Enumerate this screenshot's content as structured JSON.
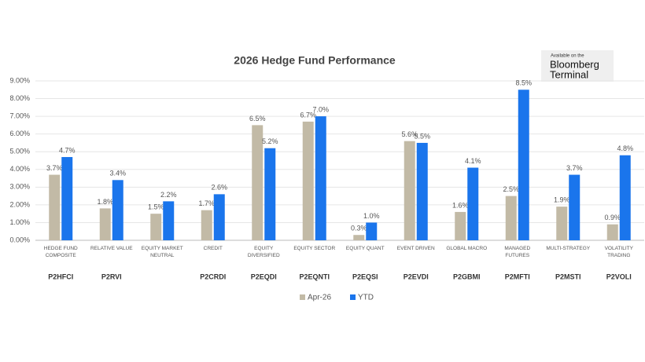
{
  "chart_data": {
    "type": "bar",
    "title": "2026 Hedge Fund Performance",
    "categories": [
      "HEDGE FUND\nCOMPOSITE",
      "RELATIVE VALUE",
      "EQUITY MARKET\nNEUTRAL",
      "CREDIT",
      "EQUITY\nDIVERSIFIED",
      "EQUITY SECTOR",
      "EQUITY QUANT",
      "EVENT DRIVEN",
      "GLOBAL MACRO",
      "MANAGED\nFUTURES",
      "MULTI-STRATEGY",
      "VOLATILITY\nTRADING"
    ],
    "tickers": [
      "P2HFCI",
      "P2RVI",
      null,
      "P2CRDI",
      "P2EQDI",
      "P2EQNTI",
      "P2EQSI",
      "P2EVDI",
      "P2GBMI",
      "P2MFTI",
      "P2MSTI",
      "P2VOLI"
    ],
    "series": [
      {
        "name": "Apr-26",
        "color": "#c2baa6",
        "values": [
          3.7,
          1.8,
          1.5,
          1.7,
          6.5,
          6.7,
          0.3,
          5.6,
          1.6,
          2.5,
          1.9,
          0.9
        ],
        "value_labels": [
          "3.7%",
          "1.8%",
          "1.5%",
          "1.7%",
          "6.5%",
          "6.7%",
          "0.3%",
          "5.6%",
          "1.6%",
          "2.5%",
          "1.9%",
          "0.9%"
        ]
      },
      {
        "name": "YTD",
        "color": "#1a75ec",
        "values": [
          4.7,
          3.4,
          2.2,
          2.6,
          5.2,
          7.0,
          1.0,
          5.5,
          4.1,
          8.5,
          3.7,
          4.8
        ],
        "value_labels": [
          "4.7%",
          "3.4%",
          "2.2%",
          "2.6%",
          "5.2%",
          "7.0%",
          "1.0%",
          "5.5%",
          "4.1%",
          "8.5%",
          "3.7%",
          "4.8%"
        ]
      }
    ],
    "ylim": [
      0,
      9
    ],
    "yticks": [
      {
        "value": 0,
        "label": "0.00%"
      },
      {
        "value": 1,
        "label": "1.00%"
      },
      {
        "value": 2,
        "label": "2.00%"
      },
      {
        "value": 3,
        "label": "3.00%"
      },
      {
        "value": 4,
        "label": "4.00%"
      },
      {
        "value": 5,
        "label": "5.00%"
      },
      {
        "value": 6,
        "label": "6.00%"
      },
      {
        "value": 7,
        "label": "7.00%"
      },
      {
        "value": 8,
        "label": "8.00%"
      },
      {
        "value": 9,
        "label": "9.00%"
      }
    ],
    "grid": true,
    "legend": "bottom",
    "logo": {
      "line1": "Available on the",
      "line2": "Bloomberg",
      "line3": "Terminal"
    }
  }
}
